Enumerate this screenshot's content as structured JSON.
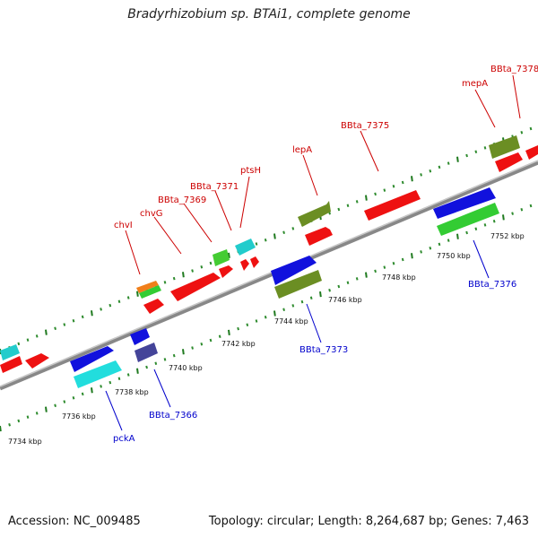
{
  "title": "Bradyrhizobium sp. BTAi1, complete genome",
  "footer": {
    "accession": "Accession: NC_009485",
    "topology": "Topology: circular; Length: 8,264,687 bp; Genes: 7,463"
  },
  "tick_labels": [
    "7734 kbp",
    "7736 kbp",
    "7738 kbp",
    "7740 kbp",
    "7742 kbp",
    "7744 kbp",
    "7746 kbp",
    "7748 kbp",
    "7750 kbp",
    "7752 kbp"
  ],
  "gene_labels": {
    "chvI": "chvI",
    "chvG": "chvG",
    "bbta7369": "BBta_7369",
    "bbta7371": "BBta_7371",
    "ptsH": "ptsH",
    "lepA": "lepA",
    "bbta7375": "BBta_7375",
    "mepA": "mepA",
    "bbta7378": "BBta_7378",
    "pckA": "pckA",
    "bbta7366": "BBta_7366",
    "bbta7373": "BBta_7373",
    "bbta7376": "BBta_7376"
  },
  "colors": {
    "backbone": "#7f7f7f",
    "forward_gene": "#ee1111",
    "tick_green": "#2e8b2e",
    "label_forward": "#cc0000",
    "label_reverse": "#0000cc"
  }
}
